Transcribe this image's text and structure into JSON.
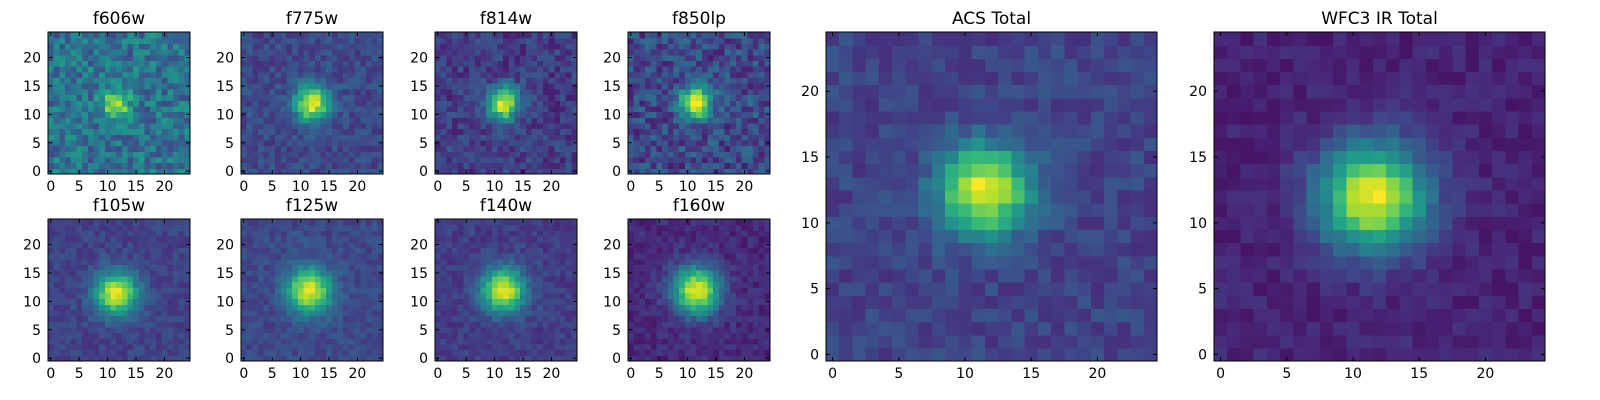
{
  "chart_data": [
    {
      "type": "heatmap",
      "title": "f606w",
      "xticks": [
        0,
        5,
        10,
        15,
        20
      ],
      "yticks": [
        0,
        5,
        10,
        15,
        20
      ],
      "xlim": [
        -0.5,
        24.5
      ],
      "ylim": [
        -0.5,
        24.5
      ],
      "grid": false,
      "colormap": "viridis",
      "center": [
        11.5,
        12
      ],
      "sigma": 1.6,
      "peak": 0.97,
      "background": 0.38,
      "noise": 0.16
    },
    {
      "type": "heatmap",
      "title": "f775w",
      "xticks": [
        0,
        5,
        10,
        15,
        20
      ],
      "yticks": [
        0,
        5,
        10,
        15,
        20
      ],
      "xlim": [
        -0.5,
        24.5
      ],
      "ylim": [
        -0.5,
        24.5
      ],
      "grid": false,
      "colormap": "viridis",
      "center": [
        12,
        12
      ],
      "sigma": 2.2,
      "peak": 0.97,
      "background": 0.22,
      "noise": 0.08
    },
    {
      "type": "heatmap",
      "title": "f814w",
      "xticks": [
        0,
        5,
        10,
        15,
        20
      ],
      "yticks": [
        0,
        5,
        10,
        15,
        20
      ],
      "xlim": [
        -0.5,
        24.5
      ],
      "ylim": [
        -0.5,
        24.5
      ],
      "grid": false,
      "colormap": "viridis",
      "center": [
        11.5,
        12
      ],
      "sigma": 2.0,
      "peak": 0.97,
      "background": 0.18,
      "noise": 0.1
    },
    {
      "type": "heatmap",
      "title": "f850lp",
      "xticks": [
        0,
        5,
        10,
        15,
        20
      ],
      "yticks": [
        0,
        5,
        10,
        15,
        20
      ],
      "xlim": [
        -0.5,
        24.5
      ],
      "ylim": [
        -0.5,
        24.5
      ],
      "grid": false,
      "colormap": "viridis",
      "center": [
        11.5,
        12
      ],
      "sigma": 2.0,
      "peak": 0.97,
      "background": 0.22,
      "noise": 0.14
    },
    {
      "type": "heatmap",
      "title": "f105w",
      "xticks": [
        0,
        5,
        10,
        15,
        20
      ],
      "yticks": [
        0,
        5,
        10,
        15,
        20
      ],
      "xlim": [
        -0.5,
        24.5
      ],
      "ylim": [
        -0.5,
        24.5
      ],
      "grid": false,
      "colormap": "viridis",
      "center": [
        11.5,
        11.5
      ],
      "sigma": 2.6,
      "peak": 0.97,
      "background": 0.2,
      "noise": 0.06
    },
    {
      "type": "heatmap",
      "title": "f125w",
      "xticks": [
        0,
        5,
        10,
        15,
        20
      ],
      "yticks": [
        0,
        5,
        10,
        15,
        20
      ],
      "xlim": [
        -0.5,
        24.5
      ],
      "ylim": [
        -0.5,
        24.5
      ],
      "grid": false,
      "colormap": "viridis",
      "center": [
        11.5,
        12
      ],
      "sigma": 2.7,
      "peak": 0.97,
      "background": 0.22,
      "noise": 0.06
    },
    {
      "type": "heatmap",
      "title": "f140w",
      "xticks": [
        0,
        5,
        10,
        15,
        20
      ],
      "yticks": [
        0,
        5,
        10,
        15,
        20
      ],
      "xlim": [
        -0.5,
        24.5
      ],
      "ylim": [
        -0.5,
        24.5
      ],
      "grid": false,
      "colormap": "viridis",
      "center": [
        11.5,
        12
      ],
      "sigma": 2.7,
      "peak": 0.97,
      "background": 0.18,
      "noise": 0.06
    },
    {
      "type": "heatmap",
      "title": "f160w",
      "xticks": [
        0,
        5,
        10,
        15,
        20
      ],
      "yticks": [
        0,
        5,
        10,
        15,
        20
      ],
      "xlim": [
        -0.5,
        24.5
      ],
      "ylim": [
        -0.5,
        24.5
      ],
      "grid": false,
      "colormap": "viridis",
      "center": [
        11.5,
        12
      ],
      "sigma": 2.9,
      "peak": 0.97,
      "background": 0.12,
      "noise": 0.06
    },
    {
      "type": "heatmap",
      "title": "ACS Total",
      "xticks": [
        0,
        5,
        10,
        15,
        20
      ],
      "yticks": [
        0,
        5,
        10,
        15,
        20
      ],
      "xlim": [
        -0.5,
        24.5
      ],
      "ylim": [
        -0.5,
        24.5
      ],
      "grid": false,
      "colormap": "viridis",
      "center": [
        11.5,
        12.5
      ],
      "sigma": 2.4,
      "peak": 0.98,
      "background": 0.2,
      "noise": 0.07
    },
    {
      "type": "heatmap",
      "title": "WFC3 IR Total",
      "xticks": [
        0,
        5,
        10,
        15,
        20
      ],
      "yticks": [
        0,
        5,
        10,
        15,
        20
      ],
      "xlim": [
        -0.5,
        24.5
      ],
      "ylim": [
        -0.5,
        24.5
      ],
      "grid": false,
      "colormap": "viridis",
      "center": [
        11.5,
        12
      ],
      "sigma": 2.8,
      "peak": 0.98,
      "background": 0.1,
      "noise": 0.05
    }
  ]
}
